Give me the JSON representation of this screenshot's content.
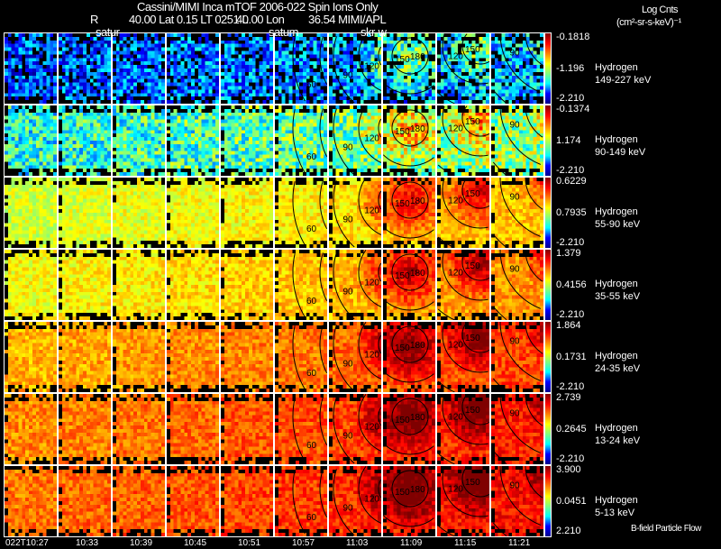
{
  "header": {
    "title": "Cassini/MIMI Inca mTOF  2006-022   Spin   Ions Only",
    "subtitle_r": "R",
    "subtitle_lat": "40.00 Lat 0.15 LT 0251 L",
    "subtitle_lon": "40.00 Lon",
    "subtitle_val": "36.54  MIMI/APL",
    "overlay_1": "satur",
    "overlay_2": "saturn",
    "overlay_3": "skr-w",
    "units_line1": "Log Cnts",
    "units_line2": "(cm²-sr-s-keV)⁻¹"
  },
  "footer_note": "B-field Particle Flow",
  "chart_data": {
    "type": "heatmap",
    "title": "Cassini/MIMI Inca mTOF  2006-022   Spin   Ions Only",
    "times": [
      "022T10:27",
      "10:33",
      "10:39",
      "10:45",
      "10:51",
      "10:57",
      "11:03",
      "11:09",
      "11:15",
      "11:21"
    ],
    "contour_labels": [
      "60",
      "90",
      "120",
      "150",
      "180"
    ],
    "rows": [
      {
        "species": "Hydrogen",
        "energy": "149-227 keV",
        "cmax": "-0.1818",
        "cmid": "-1.196",
        "cmin": "-2.210",
        "level": 0.2
      },
      {
        "species": "Hydrogen",
        "energy": "90-149 keV",
        "cmax": "-0.1374",
        "cmid": "1.174",
        "cmin": "-2.210",
        "level": 0.4
      },
      {
        "species": "Hydrogen",
        "energy": "55-90 keV",
        "cmax": "0.6229",
        "cmid": "0.7935",
        "cmin": "-2.210",
        "level": 0.58
      },
      {
        "species": "Hydrogen",
        "energy": "35-55 keV",
        "cmax": "1.379",
        "cmid": "0.4156",
        "cmin": "-2.210",
        "level": 0.62
      },
      {
        "species": "Hydrogen",
        "energy": "24-35 keV",
        "cmax": "1.864",
        "cmid": "0.1731",
        "cmin": "-2.210",
        "level": 0.7
      },
      {
        "species": "Hydrogen",
        "energy": "13-24 keV",
        "cmax": "2.739",
        "cmid": "0.2645",
        "cmin": "-2.210",
        "level": 0.74
      },
      {
        "species": "Hydrogen",
        "energy": "5-13 keV",
        "cmax": "3.900",
        "cmid": "0.0451",
        "cmin": "2.210",
        "level": 0.76
      }
    ]
  }
}
